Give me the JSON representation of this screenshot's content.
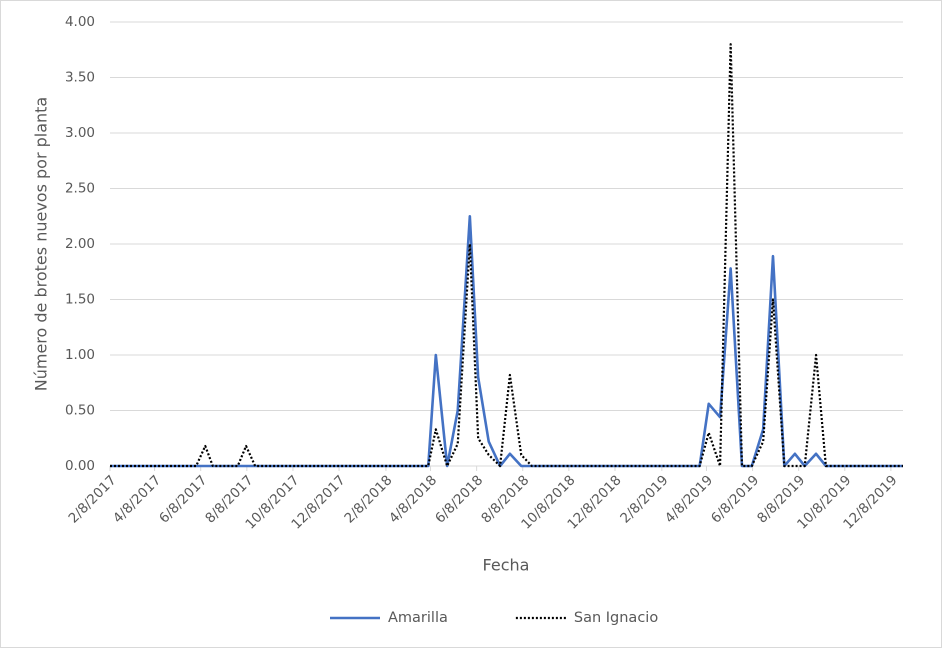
{
  "chart_data": {
    "type": "line",
    "x_label": "Fecha",
    "y_label": "Número de brotes nuevos por planta",
    "x": [
      "2017-02-08",
      "2017-06-02",
      "2017-06-14",
      "2017-06-24",
      "2017-07-27",
      "2017-08-07",
      "2017-08-19",
      "2018-04-05",
      "2018-04-15",
      "2018-04-30",
      "2018-05-14",
      "2018-05-30",
      "2018-06-10",
      "2018-06-24",
      "2018-07-09",
      "2018-07-22",
      "2018-08-06",
      "2018-08-20",
      "2019-03-30",
      "2019-04-11",
      "2019-04-26",
      "2019-05-10",
      "2019-05-25",
      "2019-06-07",
      "2019-06-22",
      "2019-07-05",
      "2019-07-20",
      "2019-08-03",
      "2019-08-16",
      "2019-08-31",
      "2019-09-13",
      "2019-12-24"
    ],
    "series": [
      {
        "name": "Amarilla",
        "color": "#4472c4",
        "style": "solid",
        "values": [
          0,
          0,
          0,
          0,
          0,
          0,
          0,
          0,
          1.0,
          0,
          0.5,
          2.25,
          0.8,
          0.22,
          0,
          0.11,
          0,
          0,
          0,
          0.56,
          0.44,
          1.78,
          0,
          0,
          0.33,
          1.89,
          0,
          0.11,
          0,
          0.11,
          0,
          0
        ]
      },
      {
        "name": "San Ignacio",
        "color": "#000000",
        "style": "dotted",
        "values": [
          0,
          0,
          0.18,
          0,
          0,
          0.18,
          0,
          0,
          0.33,
          0,
          0.2,
          2.0,
          0.25,
          0.1,
          0,
          0.82,
          0.1,
          0,
          0,
          0.3,
          0,
          3.8,
          0,
          0,
          0.22,
          1.5,
          0,
          0,
          0,
          1.0,
          0,
          0
        ]
      }
    ],
    "xlim": [
      "2017-02-08",
      "2019-12-24"
    ],
    "xticks": [
      {
        "value": "2017-02-08",
        "label": "2/8/2017"
      },
      {
        "value": "2017-04-08",
        "label": "4/8/2017"
      },
      {
        "value": "2017-06-08",
        "label": "6/8/2017"
      },
      {
        "value": "2017-08-08",
        "label": "8/8/2017"
      },
      {
        "value": "2017-10-08",
        "label": "10/8/2017"
      },
      {
        "value": "2017-12-08",
        "label": "12/8/2017"
      },
      {
        "value": "2018-02-08",
        "label": "2/8/2018"
      },
      {
        "value": "2018-04-08",
        "label": "4/8/2018"
      },
      {
        "value": "2018-06-08",
        "label": "6/8/2018"
      },
      {
        "value": "2018-08-08",
        "label": "8/8/2018"
      },
      {
        "value": "2018-10-08",
        "label": "10/8/2018"
      },
      {
        "value": "2018-12-08",
        "label": "12/8/2018"
      },
      {
        "value": "2019-02-08",
        "label": "2/8/2019"
      },
      {
        "value": "2019-04-08",
        "label": "4/8/2019"
      },
      {
        "value": "2019-06-08",
        "label": "6/8/2019"
      },
      {
        "value": "2019-08-08",
        "label": "8/8/2019"
      },
      {
        "value": "2019-10-08",
        "label": "10/8/2019"
      },
      {
        "value": "2019-12-08",
        "label": "12/8/2019"
      }
    ],
    "ylim": [
      0,
      4
    ],
    "yticks": [
      {
        "value": 0,
        "label": "0.00"
      },
      {
        "value": 0.5,
        "label": "0.50"
      },
      {
        "value": 1,
        "label": "1.00"
      },
      {
        "value": 1.5,
        "label": "1.50"
      },
      {
        "value": 2,
        "label": "2.00"
      },
      {
        "value": 2.5,
        "label": "2.50"
      },
      {
        "value": 3,
        "label": "3.00"
      },
      {
        "value": 3.5,
        "label": "3.50"
      },
      {
        "value": 4,
        "label": "4.00"
      }
    ],
    "grid": true,
    "legend": "bottom"
  }
}
